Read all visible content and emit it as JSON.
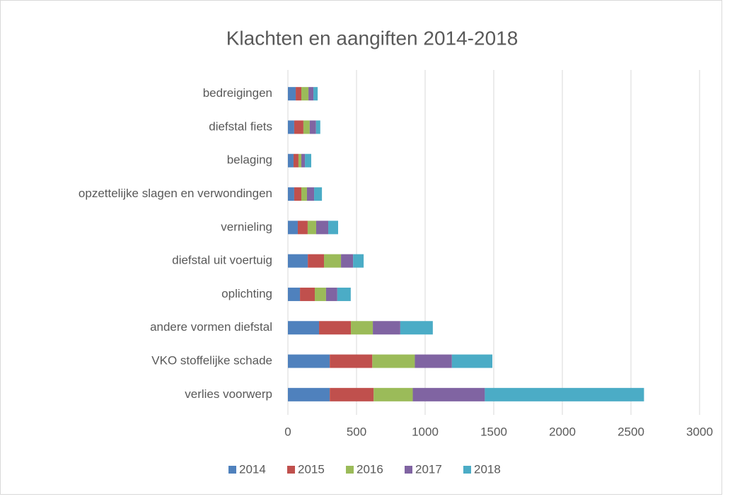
{
  "chart_data": {
    "type": "stacked_bar_horizontal",
    "title": "Klachten en aangiften 2014-2018",
    "categories": [
      "bedreigingen",
      "diefstal fiets",
      "belaging",
      "opzettelijke slagen en verwondingen",
      "vernieling",
      "diefstal uit voertuig",
      "oplichting",
      "andere vormen diefstal",
      "VKO stoffelijke schade",
      "verlies voorwerp"
    ],
    "series": [
      {
        "name": "2014",
        "color": "#4f81bd",
        "values": [
          57,
          46,
          41,
          46,
          72,
          145,
          88,
          227,
          305,
          305
        ]
      },
      {
        "name": "2015",
        "color": "#c0504d",
        "values": [
          41,
          67,
          36,
          52,
          72,
          118,
          108,
          232,
          310,
          320
        ]
      },
      {
        "name": "2016",
        "color": "#9bbb59",
        "values": [
          52,
          46,
          21,
          41,
          62,
          124,
          82,
          160,
          310,
          285
        ]
      },
      {
        "name": "2017",
        "color": "#8064a2",
        "values": [
          36,
          46,
          26,
          52,
          88,
          88,
          82,
          200,
          270,
          525
        ]
      },
      {
        "name": "2018",
        "color": "#4bacc6",
        "values": [
          31,
          31,
          46,
          57,
          72,
          77,
          98,
          237,
          295,
          1160
        ]
      }
    ],
    "xlim": [
      0,
      3000
    ],
    "xticks": [
      0,
      500,
      1000,
      1500,
      2000,
      2500,
      3000
    ],
    "grid": true,
    "legend": "bottom"
  }
}
